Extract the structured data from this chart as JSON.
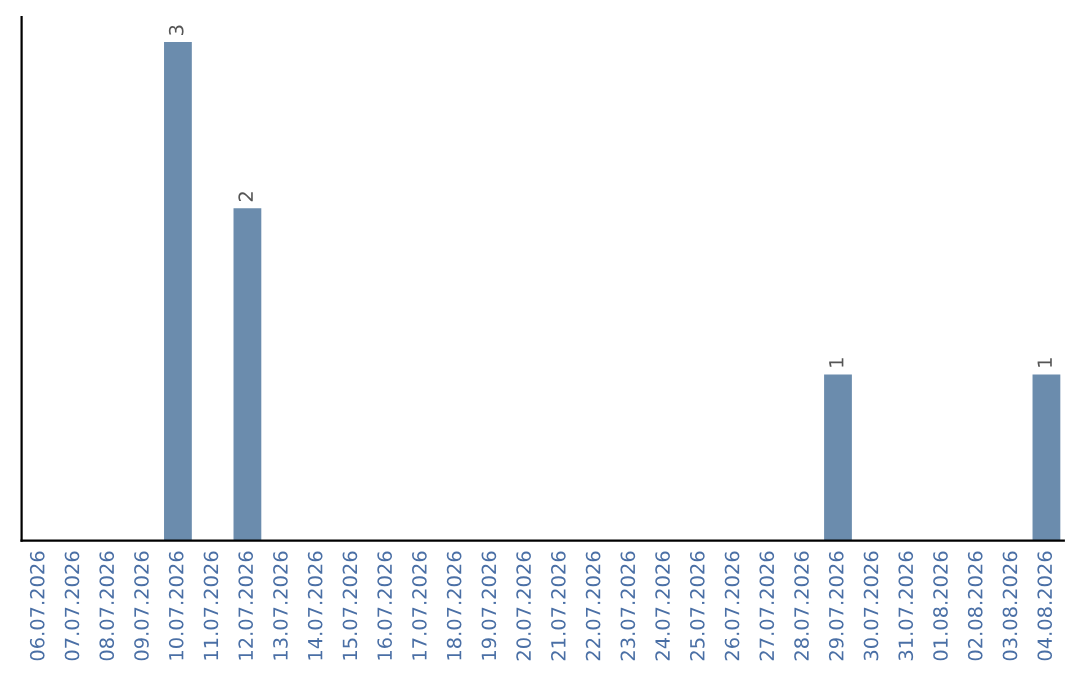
{
  "chart_data": {
    "type": "bar",
    "categories": [
      "06.07.2026",
      "07.07.2026",
      "08.07.2026",
      "09.07.2026",
      "10.07.2026",
      "11.07.2026",
      "12.07.2026",
      "13.07.2026",
      "14.07.2026",
      "15.07.2026",
      "16.07.2026",
      "17.07.2026",
      "18.07.2026",
      "19.07.2026",
      "20.07.2026",
      "21.07.2026",
      "22.07.2026",
      "23.07.2026",
      "24.07.2026",
      "25.07.2026",
      "26.07.2026",
      "27.07.2026",
      "28.07.2026",
      "29.07.2026",
      "30.07.2026",
      "31.07.2026",
      "01.08.2026",
      "02.08.2026",
      "03.08.2026",
      "04.08.2026"
    ],
    "values": [
      0,
      0,
      0,
      0,
      3,
      0,
      2,
      0,
      0,
      0,
      0,
      0,
      0,
      0,
      0,
      0,
      0,
      0,
      0,
      0,
      0,
      0,
      0,
      1,
      0,
      0,
      0,
      0,
      0,
      1
    ],
    "value_labels": [
      null,
      null,
      null,
      null,
      "3",
      null,
      "2",
      null,
      null,
      null,
      null,
      null,
      null,
      null,
      null,
      null,
      null,
      null,
      null,
      null,
      null,
      null,
      null,
      "1",
      null,
      null,
      null,
      null,
      null,
      "1"
    ],
    "color": "#6b8cad",
    "tick_labels": "x",
    "grid": false
  }
}
